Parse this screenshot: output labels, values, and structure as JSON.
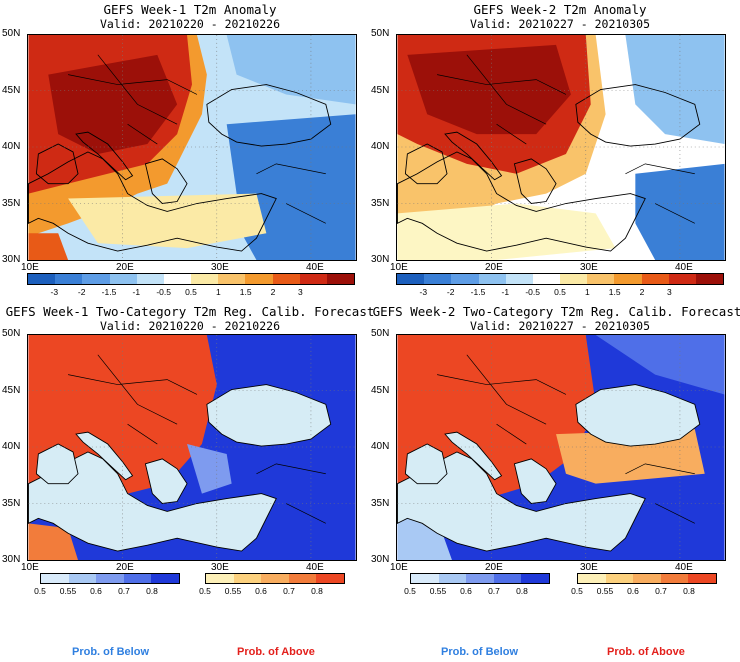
{
  "panels": [
    {
      "title": "GEFS Week-1 T2m Anomaly",
      "valid": "Valid: 20210220 - 20210226"
    },
    {
      "title": "GEFS Week-2 T2m Anomaly",
      "valid": "Valid: 20210227 - 20210305"
    },
    {
      "title": "GEFS Week-1 Two-Category T2m Reg. Calib. Forecast",
      "valid": "Valid: 20210220 - 20210226"
    },
    {
      "title": "GEFS Week-2 Two-Category T2m Reg. Calib. Forecast",
      "valid": "Valid: 20210227 - 20210305"
    }
  ],
  "lat_labels": [
    "50N",
    "45N",
    "40N",
    "35N",
    "30N"
  ],
  "lon_labels": [
    "10E",
    "20E",
    "30E",
    "40E"
  ],
  "anomaly_ticks": [
    "-3",
    "-2",
    "-1.5",
    "-1",
    "-0.5",
    "0.5",
    "1",
    "1.5",
    "2",
    "3"
  ],
  "prob_ticks": [
    "0.5",
    "0.55",
    "0.6",
    "0.7",
    "0.8"
  ],
  "anomaly_colors": [
    "#1c5fbd",
    "#3a7fd6",
    "#5e9de6",
    "#8ec2f0",
    "#c3e3f8",
    "#ffffff",
    "#fbeaa6",
    "#f9c36a",
    "#f39a2e",
    "#e85a17",
    "#cf2a14",
    "#9c1009"
  ],
  "below_colors": [
    "#d9ebfb",
    "#a9c9f4",
    "#7e9bef",
    "#4f6fe8",
    "#1f39d9"
  ],
  "above_colors": [
    "#fdf0b8",
    "#fcd17e",
    "#f8ad5f",
    "#f27c3b",
    "#ec4723"
  ],
  "legend": {
    "below": "Prob. of Below",
    "above": "Prob. of Above"
  }
}
